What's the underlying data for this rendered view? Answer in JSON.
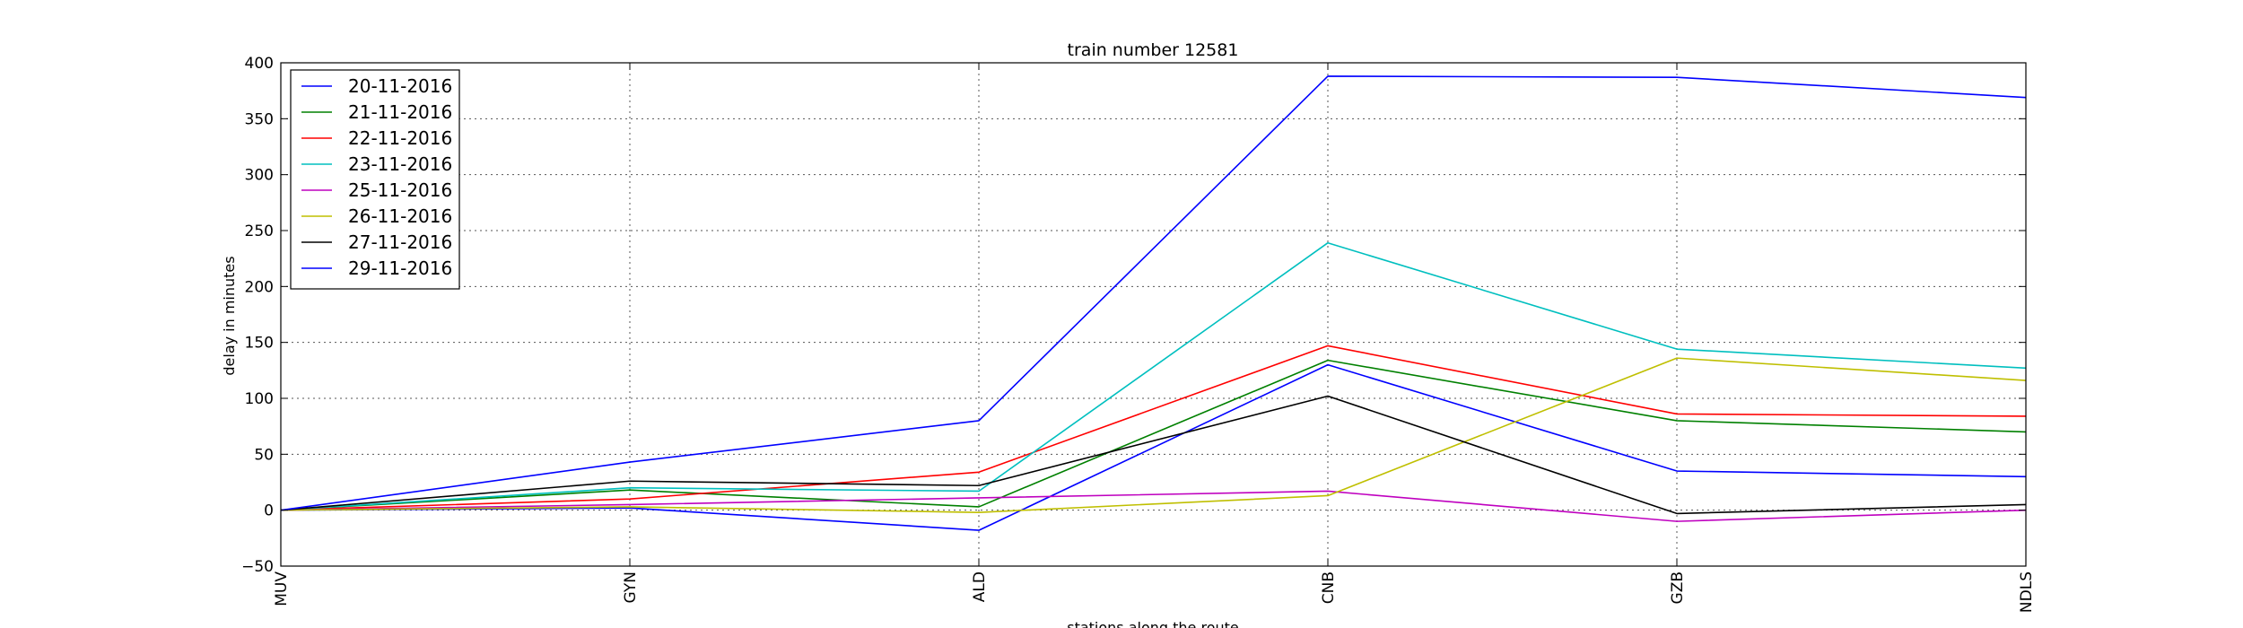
{
  "chart_data": {
    "type": "line",
    "title": "train number 12581",
    "xlabel": "stations along the route",
    "ylabel": "delay in minutes",
    "categories": [
      "MUV",
      "GYN",
      "ALD",
      "CNB",
      "GZB",
      "NDLS"
    ],
    "ylim": [
      -50,
      400
    ],
    "yticks": [
      -50,
      0,
      50,
      100,
      150,
      200,
      250,
      300,
      350,
      400
    ],
    "grid": true,
    "legend_position": "top-left",
    "series": [
      {
        "name": "20-11-2016",
        "color": "#0000ff",
        "values": [
          0,
          2,
          -18,
          130,
          35,
          30
        ]
      },
      {
        "name": "21-11-2016",
        "color": "#008000",
        "values": [
          0,
          18,
          3,
          134,
          80,
          70
        ]
      },
      {
        "name": "22-11-2016",
        "color": "#ff0000",
        "values": [
          0,
          10,
          34,
          147,
          86,
          84
        ]
      },
      {
        "name": "23-11-2016",
        "color": "#00bfbf",
        "values": [
          0,
          20,
          17,
          239,
          144,
          127
        ]
      },
      {
        "name": "25-11-2016",
        "color": "#bf00bf",
        "values": [
          0,
          5,
          11,
          17,
          -10,
          0
        ]
      },
      {
        "name": "26-11-2016",
        "color": "#bfbf00",
        "values": [
          0,
          3,
          -2,
          13,
          136,
          116
        ]
      },
      {
        "name": "27-11-2016",
        "color": "#000000",
        "values": [
          0,
          26,
          22,
          102,
          -3,
          5
        ]
      },
      {
        "name": "29-11-2016",
        "color": "#0000ff",
        "values": [
          0,
          43,
          80,
          388,
          387,
          369
        ]
      }
    ]
  }
}
